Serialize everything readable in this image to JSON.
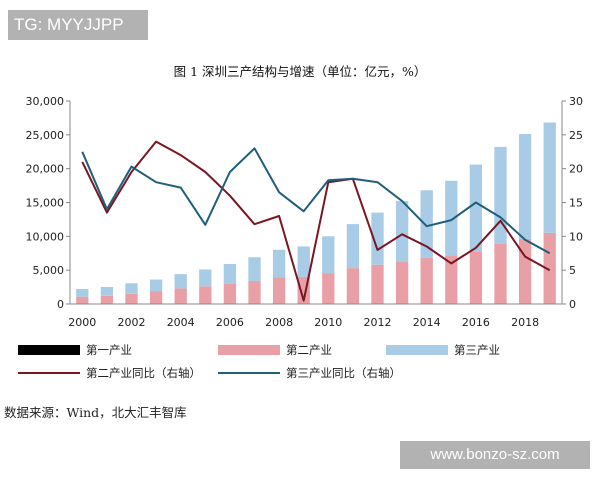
{
  "header": {
    "tag": "TG: MYYJJPP"
  },
  "footer": {
    "source": "数据来源：Wind，北大汇丰智库",
    "watermark": "www.bonzo-sz.com"
  },
  "chart_data": {
    "type": "bar",
    "title": "图 1  深圳三产结构与增速（单位：亿元，%）",
    "x": [
      2000,
      2001,
      2002,
      2003,
      2004,
      2005,
      2006,
      2007,
      2008,
      2009,
      2010,
      2011,
      2012,
      2013,
      2014,
      2015,
      2016,
      2017,
      2018,
      2019
    ],
    "x_ticks": [
      "2000",
      "2002",
      "2004",
      "2006",
      "2008",
      "2010",
      "2012",
      "2014",
      "2016",
      "2018"
    ],
    "y_left": {
      "min": 0,
      "max": 30000,
      "ticks": [
        "0",
        "5,000",
        "10,000",
        "15,000",
        "20,000",
        "25,000",
        "30,000"
      ]
    },
    "y_right": {
      "min": 0,
      "max": 30,
      "ticks": [
        "0",
        "5",
        "10",
        "15",
        "20",
        "25",
        "30"
      ]
    },
    "grid": false,
    "legend_position": "bottom",
    "series": [
      {
        "name": "第一产业",
        "kind": "bar",
        "axis": "left",
        "color": "#000000",
        "values": [
          12,
          12,
          11,
          10,
          9,
          9,
          8,
          8,
          8,
          7,
          6,
          6,
          5,
          5,
          5,
          5,
          6,
          17,
          22,
          25
        ]
      },
      {
        "name": "第二产业",
        "kind": "bar",
        "axis": "left",
        "color": "#e8a0a6",
        "values": [
          1050,
          1200,
          1500,
          1900,
          2300,
          2600,
          3000,
          3400,
          3900,
          4000,
          4500,
          5300,
          5800,
          6200,
          6800,
          7200,
          7800,
          8900,
          9600,
          10500
        ]
      },
      {
        "name": "第三产业",
        "kind": "bar",
        "axis": "left",
        "color": "#a8cbe6",
        "values": [
          1150,
          1300,
          1550,
          1700,
          2100,
          2500,
          2900,
          3500,
          4100,
          4500,
          5500,
          6500,
          7700,
          9000,
          10000,
          11000,
          12800,
          14300,
          15500,
          16300
        ]
      },
      {
        "name": "第二产业同比（右轴）",
        "kind": "line",
        "axis": "right",
        "color": "#7a1622",
        "values": [
          21,
          13.5,
          19.5,
          24,
          22,
          19.5,
          16,
          11.8,
          13,
          0.5,
          18,
          18.5,
          8,
          10.3,
          8.5,
          6,
          8.3,
          12.3,
          7,
          5
        ]
      },
      {
        "name": "第三产业同比（右轴）",
        "kind": "line",
        "axis": "right",
        "color": "#1f5f7a",
        "values": [
          22.5,
          14,
          20.3,
          18,
          17.2,
          11.7,
          19.5,
          23,
          16.5,
          13.7,
          18.3,
          18.5,
          18,
          15.2,
          11.5,
          12.4,
          15,
          12.8,
          9.5,
          7.5
        ]
      }
    ]
  }
}
